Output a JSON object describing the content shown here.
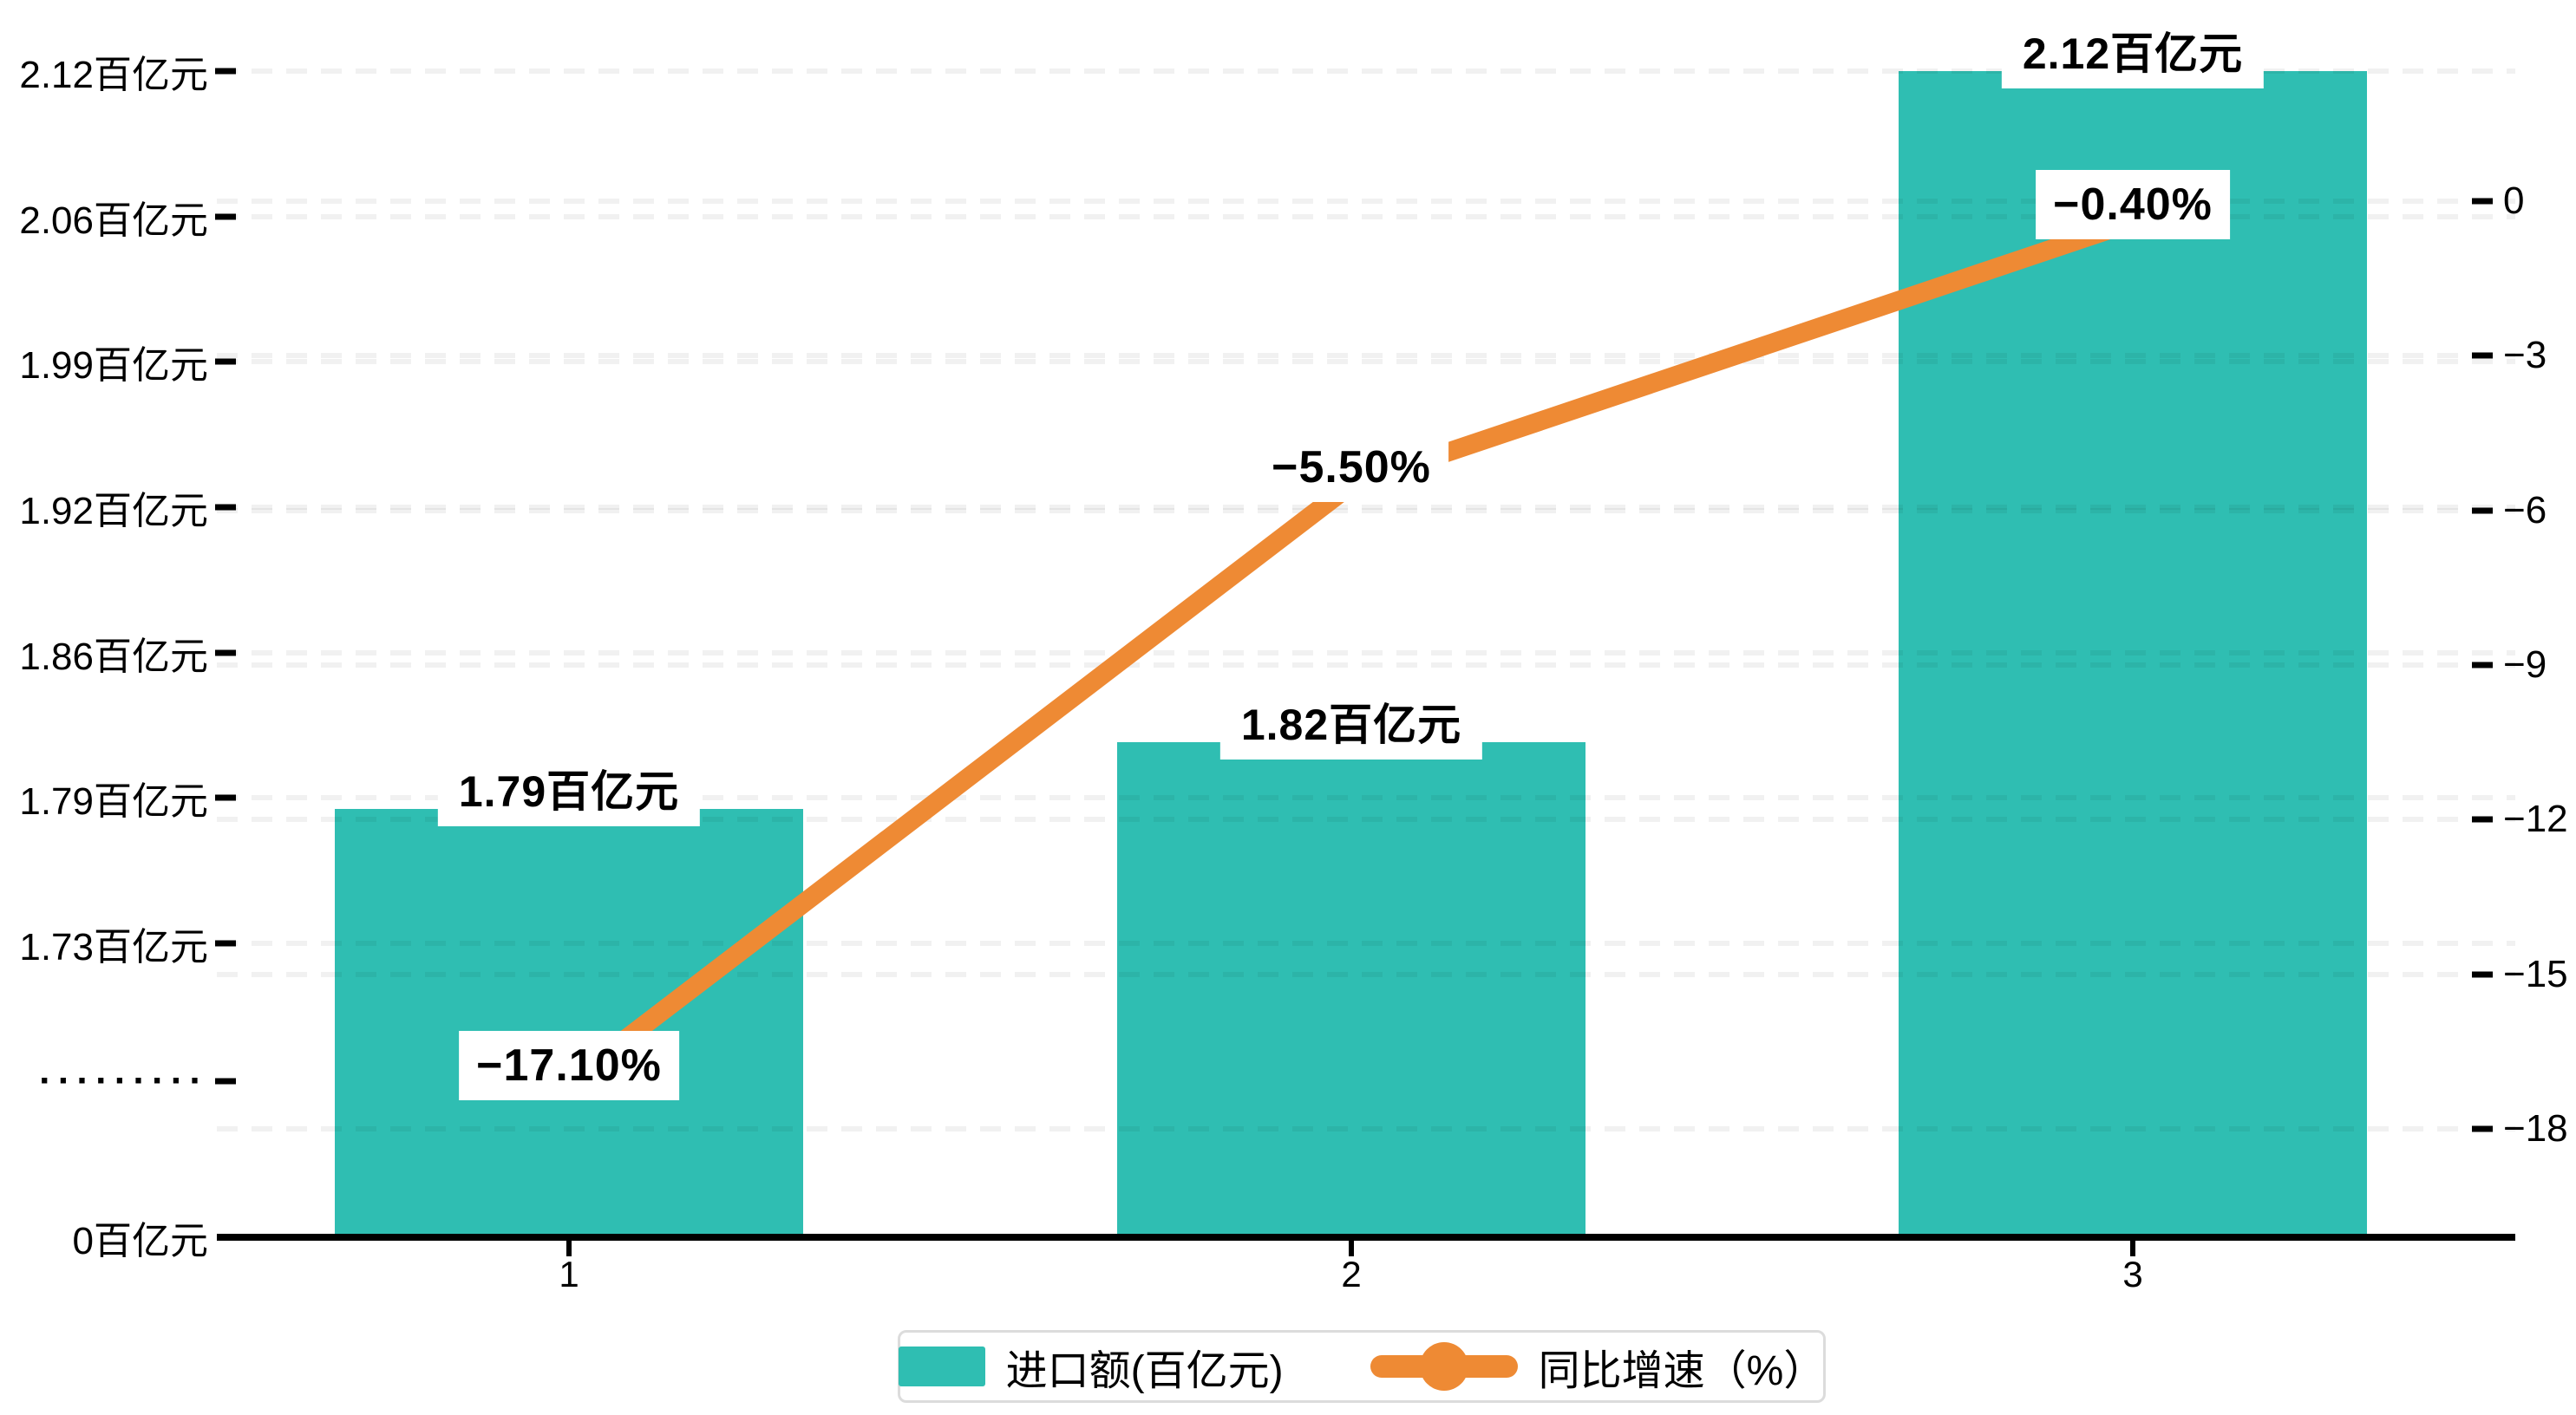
{
  "chart_data": {
    "type": "bar+line",
    "title": "",
    "categories": [
      "1",
      "2",
      "3"
    ],
    "series": [
      {
        "name": "进口额(百亿元)",
        "type": "bar",
        "yaxis": "left",
        "color": "#2FBEB2",
        "values": [
          1.79,
          1.82,
          2.12
        ],
        "data_labels": [
          "1.79百亿元",
          "1.82百亿元",
          "2.12百亿元"
        ]
      },
      {
        "name": "同比增速（%）",
        "type": "line",
        "yaxis": "right",
        "color": "#EE8A34",
        "values": [
          -17.1,
          -5.5,
          -0.4
        ],
        "data_labels": [
          "−17.10%",
          "−5.50%",
          "−0.40%"
        ]
      }
    ],
    "left_axis": {
      "unit": "百亿元",
      "broken_axis": true,
      "tick_labels_top_to_bottom": [
        "2.12百亿元",
        "2.06百亿元",
        "1.99百亿元",
        "1.92百亿元",
        "1.86百亿元",
        "1.79百亿元",
        "1.73百亿元"
      ],
      "tick_values_top_to_bottom": [
        2.12,
        2.06,
        1.99,
        1.92,
        1.86,
        1.79,
        1.73
      ],
      "axis_break_label": "·········",
      "zero_label": "0百亿元",
      "upper_segment_range": [
        1.73,
        2.12
      ]
    },
    "right_axis": {
      "tick_labels_top_to_bottom": [
        "0",
        "−3",
        "−6",
        "−9",
        "−12",
        "−15",
        "−18"
      ],
      "range": [
        0,
        -18
      ],
      "tick_step": 3
    },
    "grid": {
      "dashed": true,
      "color_hint": "#f0f0f0"
    },
    "legend_position": "bottom-center",
    "background": "#ffffff"
  }
}
